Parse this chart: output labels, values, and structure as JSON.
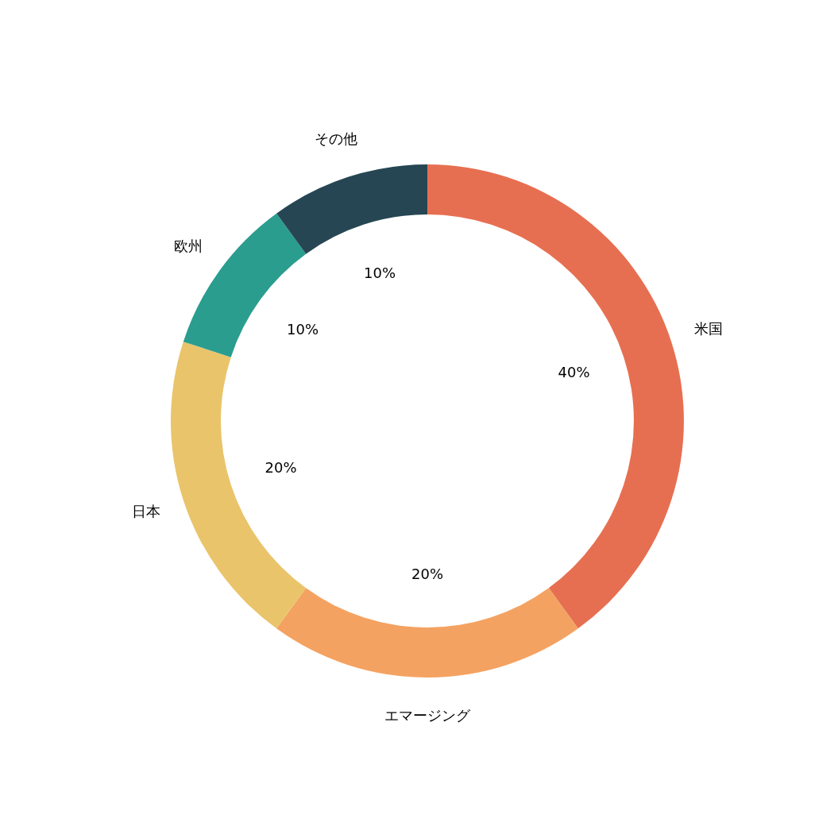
{
  "chart_data": {
    "type": "donut",
    "categories": [
      "米国",
      "エマージング",
      "日本",
      "欧州",
      "その他"
    ],
    "values": [
      40,
      20,
      20,
      10,
      10
    ],
    "value_labels": [
      "40%",
      "20%",
      "20%",
      "10%",
      "10%"
    ],
    "colors": [
      "#e76f51",
      "#f4a261",
      "#e9c46a",
      "#2a9d8f",
      "#264653"
    ]
  }
}
